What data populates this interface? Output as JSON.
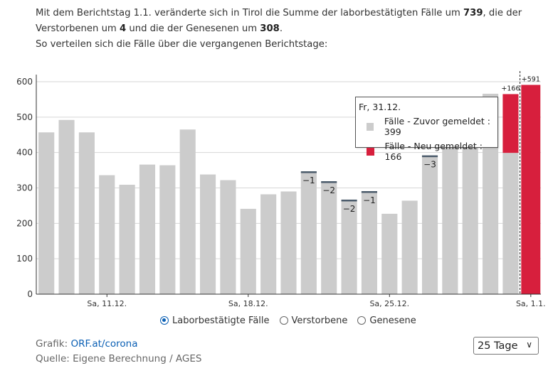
{
  "intro": {
    "t1": "Mit dem Berichtstag 1.1. veränderte sich in Tirol die Summe der laborbestätigten Fälle um ",
    "b1": "739",
    "t2": ", die der Verstorbenen um ",
    "b2": "4",
    "t3": " und die der Genesenen um ",
    "b3": "308",
    "t4": ".",
    "line2": "So verteilen sich die Fälle über die vergangenen Berichtstage:"
  },
  "colors": {
    "gray": "#cccccc",
    "red": "#d71f3d",
    "grid": "#d6d6d6",
    "axis": "#333333",
    "accent": "#0a5fb4"
  },
  "chart_data": {
    "type": "bar",
    "stacked": true,
    "ylim": [
      0,
      600
    ],
    "yticks": [
      0,
      100,
      200,
      300,
      400,
      500,
      600
    ],
    "xtick_labels": [
      {
        "index": 3,
        "label": "Sa, 11.12."
      },
      {
        "index": 10,
        "label": "Sa, 18.12."
      },
      {
        "index": 17,
        "label": "Sa, 25.12."
      },
      {
        "index": 24,
        "label": "Sa, 1.1."
      }
    ],
    "categories": [
      "8.12.",
      "9.12.",
      "10.12.",
      "11.12.",
      "12.12.",
      "13.12.",
      "14.12.",
      "15.12.",
      "16.12.",
      "17.12.",
      "18.12.",
      "19.12.",
      "20.12.",
      "21.12.",
      "22.12.",
      "23.12.",
      "24.12.",
      "25.12.",
      "26.12.",
      "27.12.",
      "28.12.",
      "29.12.",
      "30.12.",
      "31.12.",
      "1.1."
    ],
    "series": [
      {
        "name": "Fälle - Zuvor gemeldet",
        "color": "#cccccc",
        "values": [
          457,
          492,
          457,
          336,
          309,
          366,
          364,
          465,
          338,
          322,
          241,
          282,
          290,
          345,
          317,
          265,
          289,
          227,
          264,
          390,
          458,
          470,
          566,
          399,
          0
        ]
      },
      {
        "name": "Fälle - Neu gemeldet",
        "color": "#d71f3d",
        "values": [
          0,
          0,
          0,
          0,
          0,
          0,
          0,
          0,
          0,
          0,
          0,
          0,
          0,
          0,
          0,
          0,
          0,
          0,
          0,
          0,
          0,
          0,
          0,
          166,
          591
        ]
      }
    ],
    "corrections": [
      {
        "index": 13,
        "label": "−1"
      },
      {
        "index": 14,
        "label": "−2"
      },
      {
        "index": 15,
        "label": "−2"
      },
      {
        "index": 16,
        "label": "−1"
      },
      {
        "index": 19,
        "label": "−3"
      }
    ],
    "top_labels": [
      {
        "index": 23,
        "label": "+166"
      },
      {
        "index": 24,
        "label": "+591"
      }
    ],
    "tooltip": {
      "title": "Fr, 31.12.",
      "rows": [
        {
          "label": "Fälle - Zuvor gemeldet : 399",
          "color": "#cccccc"
        },
        {
          "label": "Fälle - Neu gemeldet : 166",
          "color": "#d71f3d"
        }
      ]
    },
    "grid": true,
    "legend": "bottom"
  },
  "legend": {
    "items": [
      {
        "label": "Laborbestätigte Fälle",
        "selected": true
      },
      {
        "label": "Verstorbene",
        "selected": false
      },
      {
        "label": "Genesene",
        "selected": false
      }
    ]
  },
  "footer": {
    "grafik_prefix": "Grafik: ",
    "grafik_link": "ORF.at/corona",
    "quelle": "Quelle: Eigene Berechnung / AGES"
  },
  "range_select": {
    "value": "25 Tage"
  }
}
